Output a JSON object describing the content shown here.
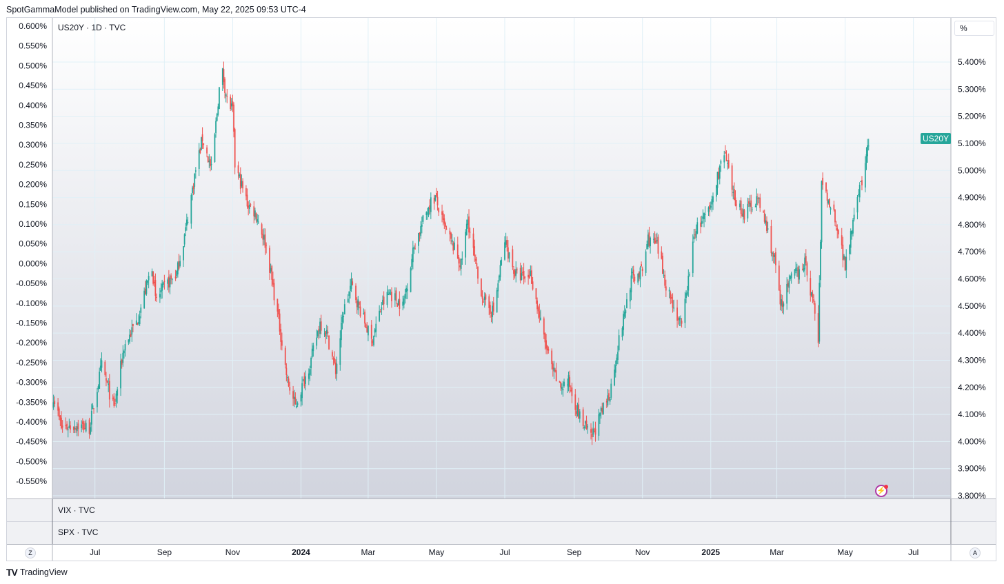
{
  "header": {
    "published": "SpotGammaModel published on TradingView.com, May 22, 2025 09:53 UTC-4"
  },
  "panes": {
    "main_legend": "US20Y · 1D · TVC",
    "vix_legend": "VIX · TVC",
    "spx_legend": "SPX · TVC"
  },
  "price_scale": {
    "unit": "%",
    "last_label": "US20Y"
  },
  "corners": {
    "left": "Z",
    "right": "A"
  },
  "footer": {
    "brand": "TradingView",
    "brand_mark": "TV"
  },
  "colors": {
    "up": "#26a69a",
    "down": "#ef5350",
    "grid": "#e0f0f7",
    "bg_top": "#ffffff",
    "bg_bottom": "#d1d4de"
  },
  "icons": {
    "logo": "tradingview-logo-icon",
    "flash": "lightning-icon"
  },
  "chart_data": {
    "type": "candlestick",
    "symbol": "US20Y",
    "interval": "1D",
    "y_right": {
      "ticks": [
        "5.400%",
        "5.300%",
        "5.200%",
        "5.100%",
        "5.000%",
        "4.900%",
        "4.800%",
        "4.700%",
        "4.600%",
        "4.500%",
        "4.400%",
        "4.300%",
        "4.200%",
        "4.100%",
        "4.000%",
        "3.900%",
        "3.800%"
      ],
      "range": [
        3.8,
        5.4
      ]
    },
    "y_left": {
      "ticks": [
        "0.600%",
        "0.550%",
        "0.500%",
        "0.450%",
        "0.400%",
        "0.350%",
        "0.300%",
        "0.250%",
        "0.200%",
        "0.150%",
        "0.100%",
        "0.050%",
        "0.000%",
        "-0.050%",
        "-0.100%",
        "-0.150%",
        "-0.200%",
        "-0.250%",
        "-0.300%",
        "-0.350%",
        "-0.400%",
        "-0.450%",
        "-0.500%",
        "-0.550%"
      ]
    },
    "x_ticks": [
      {
        "label": "Jul",
        "bold": false,
        "date": "2023-07-01"
      },
      {
        "label": "Sep",
        "bold": false,
        "date": "2023-09-01"
      },
      {
        "label": "Nov",
        "bold": false,
        "date": "2023-11-01"
      },
      {
        "label": "2024",
        "bold": true,
        "date": "2024-01-01"
      },
      {
        "label": "Mar",
        "bold": false,
        "date": "2024-03-01"
      },
      {
        "label": "May",
        "bold": false,
        "date": "2024-05-01"
      },
      {
        "label": "Jul",
        "bold": false,
        "date": "2024-07-01"
      },
      {
        "label": "Sep",
        "bold": false,
        "date": "2024-09-01"
      },
      {
        "label": "Nov",
        "bold": false,
        "date": "2024-11-01"
      },
      {
        "label": "2025",
        "bold": true,
        "date": "2025-01-01"
      },
      {
        "label": "Mar",
        "bold": false,
        "date": "2025-03-01"
      },
      {
        "label": "May",
        "bold": false,
        "date": "2025-05-01"
      },
      {
        "label": "Jul",
        "bold": false,
        "date": "2025-07-01"
      }
    ],
    "x_range": [
      "2023-05-24",
      "2025-08-01"
    ],
    "close_path": [
      {
        "date": "2023-05-25",
        "close": 4.17
      },
      {
        "date": "2023-06-01",
        "close": 4.05
      },
      {
        "date": "2023-06-15",
        "close": 4.06
      },
      {
        "date": "2023-06-26",
        "close": 4.05
      },
      {
        "date": "2023-07-07",
        "close": 4.28
      },
      {
        "date": "2023-07-18",
        "close": 4.12
      },
      {
        "date": "2023-07-27",
        "close": 4.35
      },
      {
        "date": "2023-08-08",
        "close": 4.45
      },
      {
        "date": "2023-08-21",
        "close": 4.65
      },
      {
        "date": "2023-08-24",
        "close": 4.52
      },
      {
        "date": "2023-09-01",
        "close": 4.57
      },
      {
        "date": "2023-09-12",
        "close": 4.62
      },
      {
        "date": "2023-09-20",
        "close": 4.78
      },
      {
        "date": "2023-09-28",
        "close": 4.98
      },
      {
        "date": "2023-10-05",
        "close": 5.12
      },
      {
        "date": "2023-10-13",
        "close": 5.0
      },
      {
        "date": "2023-10-20",
        "close": 5.3
      },
      {
        "date": "2023-10-23",
        "close": 5.36
      },
      {
        "date": "2023-10-27",
        "close": 5.26
      },
      {
        "date": "2023-11-01",
        "close": 5.22
      },
      {
        "date": "2023-11-03",
        "close": 5.02
      },
      {
        "date": "2023-11-14",
        "close": 4.88
      },
      {
        "date": "2023-11-22",
        "close": 4.84
      },
      {
        "date": "2023-12-01",
        "close": 4.72
      },
      {
        "date": "2023-12-13",
        "close": 4.42
      },
      {
        "date": "2023-12-20",
        "close": 4.22
      },
      {
        "date": "2023-12-27",
        "close": 4.13
      },
      {
        "date": "2024-01-10",
        "close": 4.3
      },
      {
        "date": "2024-01-18",
        "close": 4.44
      },
      {
        "date": "2024-01-24",
        "close": 4.4
      },
      {
        "date": "2024-02-01",
        "close": 4.26
      },
      {
        "date": "2024-02-08",
        "close": 4.48
      },
      {
        "date": "2024-02-15",
        "close": 4.58
      },
      {
        "date": "2024-02-20",
        "close": 4.52
      },
      {
        "date": "2024-03-04",
        "close": 4.37
      },
      {
        "date": "2024-03-13",
        "close": 4.5
      },
      {
        "date": "2024-03-20",
        "close": 4.55
      },
      {
        "date": "2024-04-01",
        "close": 4.5
      },
      {
        "date": "2024-04-11",
        "close": 4.72
      },
      {
        "date": "2024-04-25",
        "close": 4.88
      },
      {
        "date": "2024-04-30",
        "close": 4.9
      },
      {
        "date": "2024-05-07",
        "close": 4.8
      },
      {
        "date": "2024-05-16",
        "close": 4.72
      },
      {
        "date": "2024-05-23",
        "close": 4.65
      },
      {
        "date": "2024-05-29",
        "close": 4.82
      },
      {
        "date": "2024-06-07",
        "close": 4.6
      },
      {
        "date": "2024-06-14",
        "close": 4.5
      },
      {
        "date": "2024-06-21",
        "close": 4.48
      },
      {
        "date": "2024-07-01",
        "close": 4.74
      },
      {
        "date": "2024-07-10",
        "close": 4.62
      },
      {
        "date": "2024-07-19",
        "close": 4.6
      },
      {
        "date": "2024-07-24",
        "close": 4.62
      },
      {
        "date": "2024-08-05",
        "close": 4.38
      },
      {
        "date": "2024-08-12",
        "close": 4.27
      },
      {
        "date": "2024-08-19",
        "close": 4.2
      },
      {
        "date": "2024-08-27",
        "close": 4.22
      },
      {
        "date": "2024-09-05",
        "close": 4.1
      },
      {
        "date": "2024-09-16",
        "close": 4.01
      },
      {
        "date": "2024-09-26",
        "close": 4.11
      },
      {
        "date": "2024-10-03",
        "close": 4.18
      },
      {
        "date": "2024-10-10",
        "close": 4.35
      },
      {
        "date": "2024-10-22",
        "close": 4.6
      },
      {
        "date": "2024-11-01",
        "close": 4.63
      },
      {
        "date": "2024-11-06",
        "close": 4.75
      },
      {
        "date": "2024-11-14",
        "close": 4.72
      },
      {
        "date": "2024-11-22",
        "close": 4.58
      },
      {
        "date": "2024-12-03",
        "close": 4.45
      },
      {
        "date": "2024-12-06",
        "close": 4.42
      },
      {
        "date": "2024-12-18",
        "close": 4.78
      },
      {
        "date": "2024-12-31",
        "close": 4.85
      },
      {
        "date": "2025-01-10",
        "close": 5.03
      },
      {
        "date": "2025-01-14",
        "close": 5.05
      },
      {
        "date": "2025-01-21",
        "close": 4.9
      },
      {
        "date": "2025-01-31",
        "close": 4.84
      },
      {
        "date": "2025-02-11",
        "close": 4.9
      },
      {
        "date": "2025-02-18",
        "close": 4.82
      },
      {
        "date": "2025-02-28",
        "close": 4.65
      },
      {
        "date": "2025-03-04",
        "close": 4.5
      },
      {
        "date": "2025-03-14",
        "close": 4.6
      },
      {
        "date": "2025-03-26",
        "close": 4.66
      },
      {
        "date": "2025-04-04",
        "close": 4.48
      },
      {
        "date": "2025-04-07",
        "close": 4.37
      },
      {
        "date": "2025-04-10",
        "close": 4.95
      },
      {
        "date": "2025-04-22",
        "close": 4.83
      },
      {
        "date": "2025-05-01",
        "close": 4.65
      },
      {
        "date": "2025-05-12",
        "close": 4.92
      },
      {
        "date": "2025-05-16",
        "close": 4.95
      },
      {
        "date": "2025-05-22",
        "close": 5.11
      }
    ],
    "last_value": 5.11
  }
}
